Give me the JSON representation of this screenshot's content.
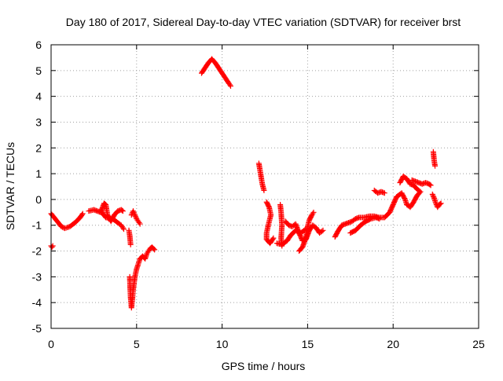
{
  "chart_data": {
    "type": "scatter",
    "title": "Day 180 of 2017, Sidereal Day-to-day VTEC variation (SDTVAR) for receiver brst",
    "xlabel": "GPS time / hours",
    "ylabel": "SDTVAR / TECUs",
    "xlim": [
      0,
      25
    ],
    "ylim": [
      -5,
      6
    ],
    "xticks": [
      0,
      5,
      10,
      15,
      20,
      25
    ],
    "yticks": [
      -5,
      -4,
      -3,
      -2,
      -1,
      0,
      1,
      2,
      3,
      4,
      5,
      6
    ],
    "grid": true,
    "marker": "plus",
    "point_color": "#ff0000",
    "grid_color": "#a0a0a0",
    "series": [
      {
        "name": "SDTVAR",
        "segments": [
          [
            [
              0.0,
              -1.8
            ],
            [
              0.05,
              -1.85
            ],
            [
              0.1,
              -1.8
            ]
          ],
          [
            [
              0.0,
              -0.55
            ],
            [
              0.3,
              -0.8
            ],
            [
              0.6,
              -1.05
            ],
            [
              0.8,
              -1.12
            ],
            [
              1.1,
              -1.05
            ],
            [
              1.4,
              -0.9
            ],
            [
              1.7,
              -0.7
            ],
            [
              1.85,
              -0.55
            ]
          ],
          [
            [
              2.2,
              -0.45
            ],
            [
              2.5,
              -0.4
            ],
            [
              2.9,
              -0.5
            ],
            [
              3.1,
              -0.15
            ],
            [
              3.2,
              -0.2
            ],
            [
              3.3,
              -0.6
            ],
            [
              3.5,
              -0.85
            ],
            [
              3.7,
              -0.6
            ],
            [
              3.9,
              -0.45
            ],
            [
              4.1,
              -0.4
            ],
            [
              4.2,
              -0.45
            ]
          ],
          [
            [
              2.9,
              -0.45
            ],
            [
              3.2,
              -0.7
            ],
            [
              3.6,
              -0.75
            ],
            [
              3.9,
              -0.9
            ],
            [
              4.1,
              -1.0
            ],
            [
              4.2,
              -1.1
            ],
            [
              4.25,
              -1.15
            ]
          ],
          [
            [
              4.55,
              -1.2
            ],
            [
              4.6,
              -1.4
            ],
            [
              4.65,
              -1.75
            ]
          ],
          [
            [
              4.7,
              -0.6
            ],
            [
              4.8,
              -0.45
            ],
            [
              4.9,
              -0.6
            ],
            [
              5.0,
              -0.75
            ],
            [
              5.1,
              -0.85
            ],
            [
              5.2,
              -0.95
            ]
          ],
          [
            [
              4.6,
              -3.0
            ],
            [
              4.62,
              -3.4
            ],
            [
              4.65,
              -3.8
            ],
            [
              4.7,
              -4.2
            ],
            [
              4.75,
              -3.9
            ],
            [
              4.8,
              -3.5
            ],
            [
              4.9,
              -3.0
            ],
            [
              5.0,
              -2.7
            ],
            [
              5.1,
              -2.5
            ],
            [
              5.2,
              -2.3
            ],
            [
              5.35,
              -2.2
            ],
            [
              5.5,
              -2.3
            ],
            [
              5.6,
              -2.1
            ],
            [
              5.7,
              -2.0
            ],
            [
              5.8,
              -1.9
            ],
            [
              5.9,
              -1.85
            ],
            [
              6.05,
              -1.95
            ]
          ],
          [
            [
              8.8,
              4.9
            ],
            [
              9.0,
              5.1
            ],
            [
              9.2,
              5.3
            ],
            [
              9.4,
              5.45
            ],
            [
              9.6,
              5.3
            ],
            [
              9.8,
              5.1
            ],
            [
              10.0,
              4.9
            ],
            [
              10.2,
              4.7
            ],
            [
              10.4,
              4.5
            ],
            [
              10.5,
              4.4
            ]
          ],
          [
            [
              12.15,
              1.4
            ],
            [
              12.25,
              1.0
            ],
            [
              12.35,
              0.6
            ],
            [
              12.45,
              0.35
            ]
          ],
          [
            [
              12.6,
              -0.1
            ],
            [
              12.75,
              -0.3
            ],
            [
              12.85,
              -0.6
            ],
            [
              12.7,
              -1.0
            ],
            [
              12.6,
              -1.3
            ],
            [
              12.6,
              -1.55
            ],
            [
              12.8,
              -1.7
            ],
            [
              13.0,
              -1.5
            ]
          ],
          [
            [
              13.4,
              -0.2
            ],
            [
              13.45,
              -0.5
            ],
            [
              13.5,
              -1.0
            ],
            [
              13.45,
              -1.5
            ],
            [
              13.5,
              -1.8
            ]
          ],
          [
            [
              13.2,
              -1.7
            ],
            [
              13.5,
              -1.75
            ],
            [
              13.8,
              -1.6
            ],
            [
              14.0,
              -1.4
            ],
            [
              14.3,
              -1.2
            ],
            [
              14.6,
              -1.3
            ],
            [
              14.9,
              -1.15
            ]
          ],
          [
            [
              13.7,
              -0.85
            ],
            [
              13.9,
              -1.0
            ],
            [
              14.1,
              -1.05
            ],
            [
              14.3,
              -0.95
            ],
            [
              14.5,
              -1.3
            ],
            [
              14.7,
              -1.6
            ],
            [
              14.9,
              -1.55
            ],
            [
              15.1,
              -1.2
            ],
            [
              15.3,
              -1.0
            ],
            [
              15.5,
              -1.1
            ],
            [
              15.7,
              -1.3
            ],
            [
              15.9,
              -1.2
            ]
          ],
          [
            [
              14.5,
              -2.0
            ],
            [
              14.7,
              -1.85
            ],
            [
              14.9,
              -1.5
            ],
            [
              15.0,
              -1.05
            ],
            [
              15.1,
              -0.8
            ],
            [
              15.25,
              -0.6
            ],
            [
              15.35,
              -0.5
            ]
          ],
          [
            [
              16.6,
              -1.45
            ],
            [
              16.8,
              -1.2
            ],
            [
              17.0,
              -1.0
            ],
            [
              17.2,
              -0.95
            ],
            [
              17.4,
              -0.9
            ],
            [
              17.6,
              -0.85
            ],
            [
              17.8,
              -0.75
            ],
            [
              18.0,
              -0.7
            ],
            [
              18.3,
              -0.7
            ],
            [
              18.6,
              -0.65
            ],
            [
              18.9,
              -0.65
            ],
            [
              19.2,
              -0.7
            ],
            [
              19.5,
              -0.7
            ],
            [
              19.8,
              -0.5
            ],
            [
              20.0,
              -0.2
            ],
            [
              20.2,
              0.1
            ],
            [
              20.5,
              0.25
            ],
            [
              20.7,
              0.0
            ],
            [
              20.8,
              -0.2
            ]
          ],
          [
            [
              17.5,
              -1.3
            ],
            [
              17.8,
              -1.2
            ],
            [
              18.1,
              -1.0
            ],
            [
              18.4,
              -0.85
            ],
            [
              18.7,
              -0.75
            ],
            [
              19.0,
              -0.7
            ],
            [
              19.2,
              -0.75
            ]
          ],
          [
            [
              18.9,
              0.35
            ],
            [
              19.1,
              0.25
            ],
            [
              19.3,
              0.3
            ],
            [
              19.5,
              0.25
            ]
          ],
          [
            [
              20.4,
              0.65
            ],
            [
              20.6,
              0.9
            ],
            [
              20.8,
              0.8
            ],
            [
              21.0,
              0.6
            ],
            [
              21.2,
              0.55
            ],
            [
              21.4,
              0.4
            ],
            [
              21.6,
              0.3
            ],
            [
              21.4,
              0.15
            ],
            [
              21.2,
              -0.1
            ],
            [
              21.0,
              -0.3
            ],
            [
              20.8,
              -0.2
            ]
          ],
          [
            [
              21.1,
              0.75
            ],
            [
              21.3,
              0.7
            ],
            [
              21.5,
              0.65
            ],
            [
              21.7,
              0.6
            ],
            [
              21.9,
              0.65
            ],
            [
              22.1,
              0.6
            ],
            [
              22.2,
              0.55
            ]
          ],
          [
            [
              22.35,
              1.85
            ],
            [
              22.4,
              1.5
            ],
            [
              22.45,
              1.3
            ]
          ],
          [
            [
              22.3,
              0.2
            ],
            [
              22.4,
              0.05
            ],
            [
              22.5,
              -0.15
            ],
            [
              22.6,
              -0.3
            ],
            [
              22.7,
              -0.2
            ],
            [
              22.8,
              -0.15
            ]
          ]
        ]
      }
    ]
  }
}
